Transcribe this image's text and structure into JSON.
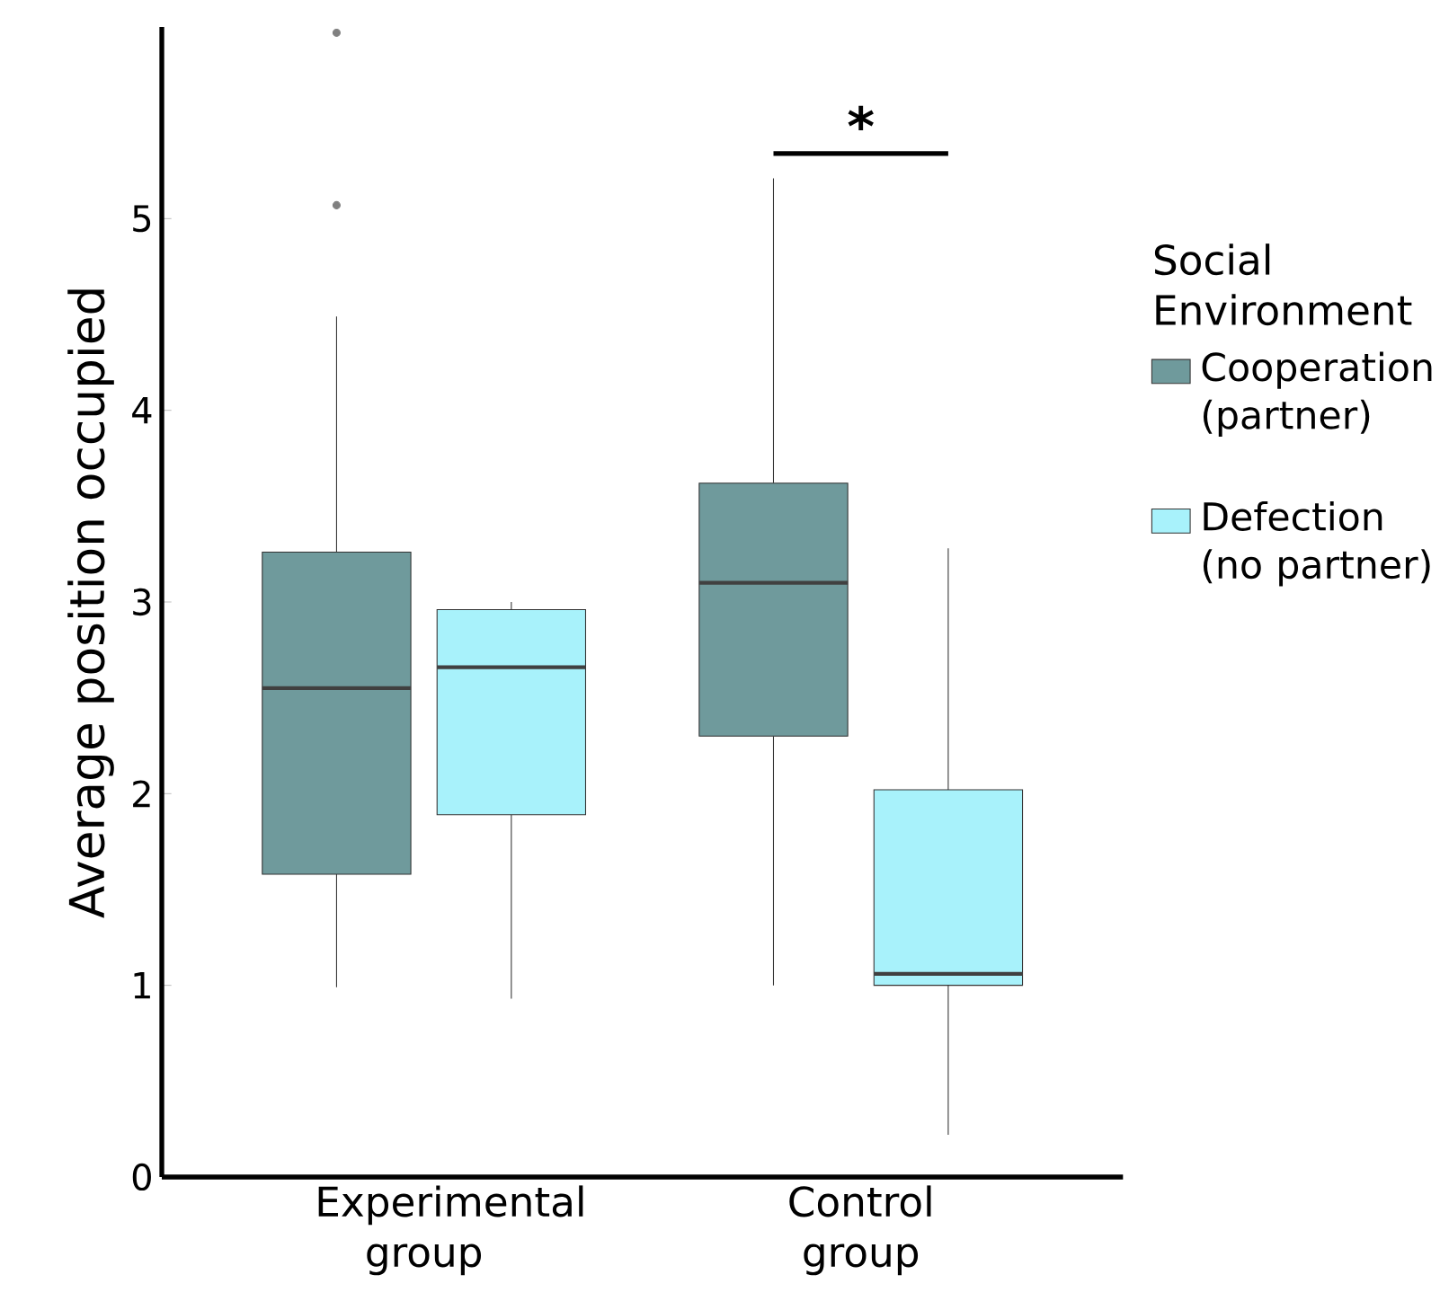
{
  "chart_data": {
    "type": "box",
    "ylabel": "Average position occupied",
    "legend_title": "Social Environment",
    "categories": [
      "Experimental group",
      "Control group"
    ],
    "ylim": [
      0,
      6
    ],
    "yticks": [
      0,
      1,
      2,
      3,
      4,
      5
    ],
    "grid": false,
    "legend": "right",
    "series": [
      {
        "name": "Cooperation (partner)",
        "color": "#6f9a9c",
        "boxes": [
          {
            "low": 0.99,
            "q1": 1.58,
            "median": 2.55,
            "q3": 3.26,
            "high": 4.49,
            "outliers": [
              5.07,
              5.97
            ]
          },
          {
            "low": 1.0,
            "q1": 2.3,
            "median": 3.1,
            "q3": 3.62,
            "high": 5.21
          }
        ]
      },
      {
        "name": "Defection (no partner)",
        "color": "#a8f2fb",
        "boxes": [
          {
            "low": 0.93,
            "q1": 1.89,
            "median": 2.66,
            "q3": 2.96,
            "high": 3.0
          },
          {
            "low": 0.22,
            "q1": 1.0,
            "median": 1.06,
            "q3": 2.02,
            "high": 3.28
          }
        ]
      }
    ],
    "annotations": [
      "*"
    ]
  }
}
